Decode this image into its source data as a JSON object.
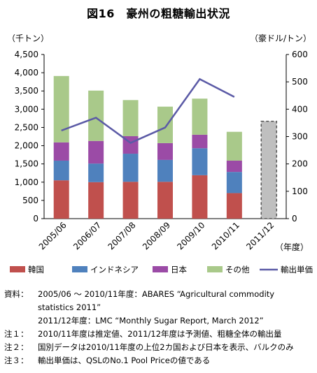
{
  "title": "図16　豪州の粗糖輸出状況",
  "chart_data": {
    "type": "bar",
    "stacked": true,
    "categories": [
      "2005/06",
      "2006/07",
      "2007/08",
      "2008/09",
      "2009/10",
      "2010/11",
      "2011/12"
    ],
    "series": [
      {
        "name": "韓国",
        "color": "#c0504d",
        "values": [
          1050,
          1000,
          1010,
          1010,
          1190,
          700,
          null
        ]
      },
      {
        "name": "インドネシア",
        "color": "#4f81bd",
        "values": [
          540,
          510,
          770,
          600,
          740,
          580,
          null
        ]
      },
      {
        "name": "日本",
        "color": "#9b4ba6",
        "values": [
          500,
          620,
          480,
          460,
          370,
          310,
          null
        ]
      },
      {
        "name": "その他",
        "color": "#a9c98a",
        "values": [
          1820,
          1380,
          990,
          1000,
          990,
          790,
          null
        ]
      }
    ],
    "total_2011_12": 2670,
    "total_2011_12_color": "#bfbfbf",
    "line": {
      "name": "輸出単価",
      "color": "#5b5aa6",
      "values": [
        322,
        369,
        277,
        333,
        510,
        445,
        null
      ]
    },
    "ylabel_left": "（千トン）",
    "ylabel_right": "（豪ドル/トン）",
    "xlabel": "（年度）",
    "ylim_left": [
      0,
      4500
    ],
    "ylim_right": [
      0,
      600
    ],
    "yticks_left": [
      "0",
      "500",
      "1,000",
      "1,500",
      "2,000",
      "2,500",
      "3,000",
      "3,500",
      "4,000",
      "4,500"
    ],
    "yticks_right": [
      "0",
      "100",
      "200",
      "300",
      "400",
      "500",
      "600"
    ],
    "legend_position": "bottom",
    "grid": false
  },
  "notes": {
    "source_label": "資料：",
    "source_line1": "2005/06 ～ 2010/11年度：ABARES “Agricultural commodity",
    "source_line2": "statistics 2011”",
    "source_line3": "2011/12年度：LMC “Monthly Sugar Report, March 2012”",
    "note1_label": "注１：",
    "note1": "2010/11年度は推定値、2011/12年度は予測値、粗糖全体の輸出量",
    "note2_label": "注２：",
    "note2": "国別データは2010/11年度の上位2カ国および日本を表示、バルクのみ",
    "note3_label": "注３：",
    "note3": "輸出単価は、QSLのNo.1 Pool Priceの値である"
  }
}
